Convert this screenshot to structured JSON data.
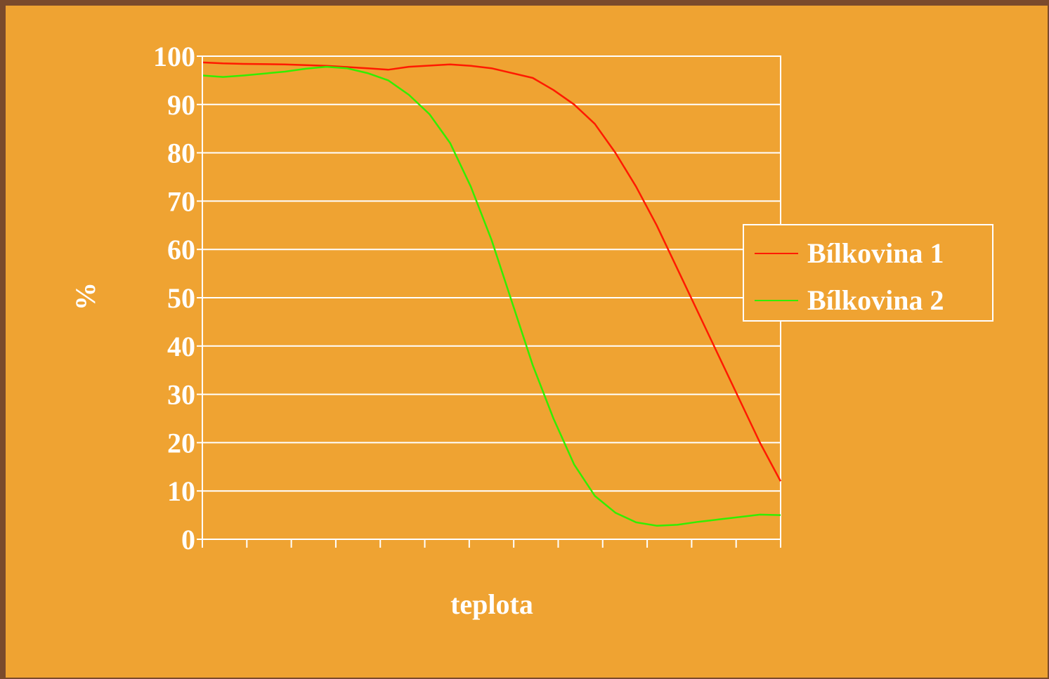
{
  "chart_data": {
    "type": "line",
    "title": "",
    "xlabel": "teplota",
    "ylabel": "%",
    "ylim": [
      0,
      100
    ],
    "y_ticks": [
      "0",
      "10",
      "20",
      "30",
      "40",
      "50",
      "60",
      "70",
      "80",
      "90",
      "100"
    ],
    "x_categories": 13,
    "grid": true,
    "legend_position": "right",
    "series": [
      {
        "name": "Bílkovina 1",
        "color": "#ff1a00",
        "points": [
          [
            0,
            98.7
          ],
          [
            0.5,
            98.5
          ],
          [
            1,
            98.4
          ],
          [
            2,
            98.3
          ],
          [
            3,
            98.0
          ],
          [
            4,
            97.5
          ],
          [
            4.5,
            97.2
          ],
          [
            5,
            97.8
          ],
          [
            6,
            98.3
          ],
          [
            6.5,
            98.0
          ],
          [
            7,
            97.5
          ],
          [
            8,
            95.5
          ],
          [
            8.5,
            93.0
          ],
          [
            9,
            90.0
          ],
          [
            9.5,
            86.0
          ],
          [
            10,
            80.0
          ],
          [
            10.5,
            73.0
          ],
          [
            11,
            65.0
          ],
          [
            11.5,
            56.0
          ],
          [
            12,
            47.0
          ],
          [
            12.5,
            38.0
          ],
          [
            13,
            29.0
          ],
          [
            13.5,
            20.0
          ],
          [
            14,
            12.0
          ]
        ]
      },
      {
        "name": "Bílkovina 2",
        "color": "#33ee00",
        "points": [
          [
            0,
            96.0
          ],
          [
            0.5,
            95.7
          ],
          [
            1,
            96.0
          ],
          [
            2,
            96.8
          ],
          [
            2.5,
            97.4
          ],
          [
            3,
            97.8
          ],
          [
            3.5,
            97.5
          ],
          [
            4,
            96.5
          ],
          [
            4.5,
            95.0
          ],
          [
            5,
            92.0
          ],
          [
            5.5,
            88.0
          ],
          [
            6,
            82.0
          ],
          [
            6.5,
            73.0
          ],
          [
            7,
            62.0
          ],
          [
            7.5,
            49.0
          ],
          [
            8,
            36.0
          ],
          [
            8.5,
            25.0
          ],
          [
            9,
            15.5
          ],
          [
            9.5,
            9.0
          ],
          [
            10,
            5.5
          ],
          [
            10.5,
            3.5
          ],
          [
            11,
            2.8
          ],
          [
            11.5,
            3.0
          ],
          [
            12,
            3.6
          ],
          [
            12.5,
            4.1
          ],
          [
            13,
            4.6
          ],
          [
            13.5,
            5.1
          ],
          [
            14,
            5.0
          ]
        ]
      }
    ]
  }
}
